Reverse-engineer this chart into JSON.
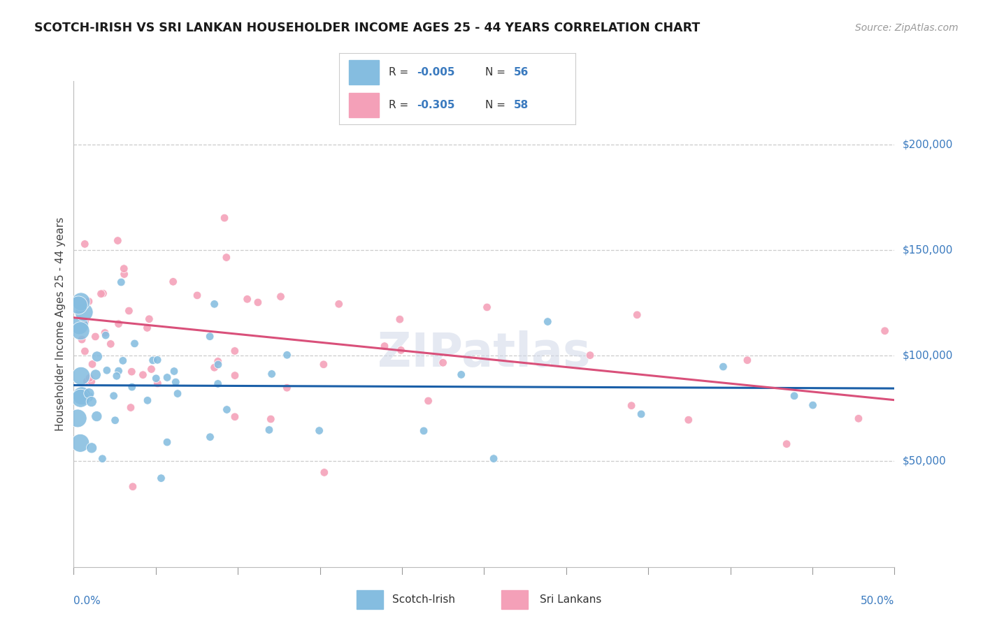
{
  "title": "SCOTCH-IRISH VS SRI LANKAN HOUSEHOLDER INCOME AGES 25 - 44 YEARS CORRELATION CHART",
  "source": "Source: ZipAtlas.com",
  "ylabel": "Householder Income Ages 25 - 44 years",
  "xlim": [
    0.0,
    50.0
  ],
  "ylim": [
    0,
    230000
  ],
  "ytick_vals": [
    50000,
    100000,
    150000,
    200000
  ],
  "ytick_labels": [
    "$50,000",
    "$100,000",
    "$150,000",
    "$200,000"
  ],
  "watermark": "ZIPatlas",
  "legend_r1": "R = -0.005",
  "legend_n1": "N = 56",
  "legend_r2": "R = -0.305",
  "legend_n2": "N = 58",
  "color_blue": "#85bde0",
  "color_pink": "#f4a0b8",
  "color_blue_line": "#1a5fa8",
  "color_pink_line": "#d9507a",
  "color_blue_text": "#3a7abf",
  "color_axis_text": "#3a7abf",
  "si_line_intercept": 86000,
  "si_line_slope": -30,
  "sl_line_intercept": 118000,
  "sl_line_slope": -780
}
